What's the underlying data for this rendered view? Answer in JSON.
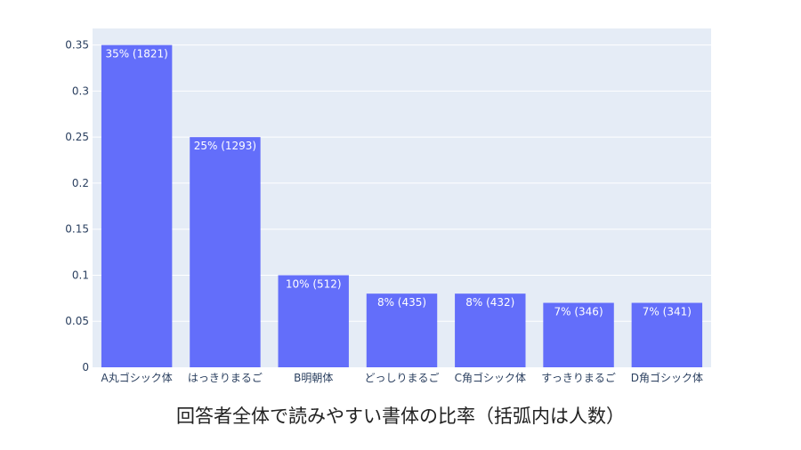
{
  "colors": {
    "plot_bg": "#e5ecf6",
    "bar": "#636efa",
    "grid": "#ffffff",
    "tick_text": "#2a3f5f",
    "bar_label": "#ffffff"
  },
  "caption": "回答者全体で読みやすい書体の比率（括弧内は人数）",
  "chart_data": {
    "type": "bar",
    "categories": [
      "A丸ゴシック体",
      "はっきりまるご",
      "B明朝体",
      "どっしりまるご",
      "C角ゴシック体",
      "すっきりまるご",
      "D角ゴシック体"
    ],
    "values": [
      0.35,
      0.25,
      0.1,
      0.08,
      0.08,
      0.07,
      0.07
    ],
    "data_labels": [
      "35% (1821)",
      "25% (1293)",
      "10% (512)",
      "8% (435)",
      "8% (432)",
      "7% (346)",
      "7% (341)"
    ],
    "yticks": [
      0,
      0.05,
      0.1,
      0.15,
      0.2,
      0.25,
      0.3,
      0.35
    ],
    "ytick_labels": [
      "0",
      "0.05",
      "0.1",
      "0.15",
      "0.2",
      "0.25",
      "0.3",
      "0.35"
    ],
    "ylim": [
      0,
      0.368
    ],
    "grid": true,
    "legend": "none"
  }
}
